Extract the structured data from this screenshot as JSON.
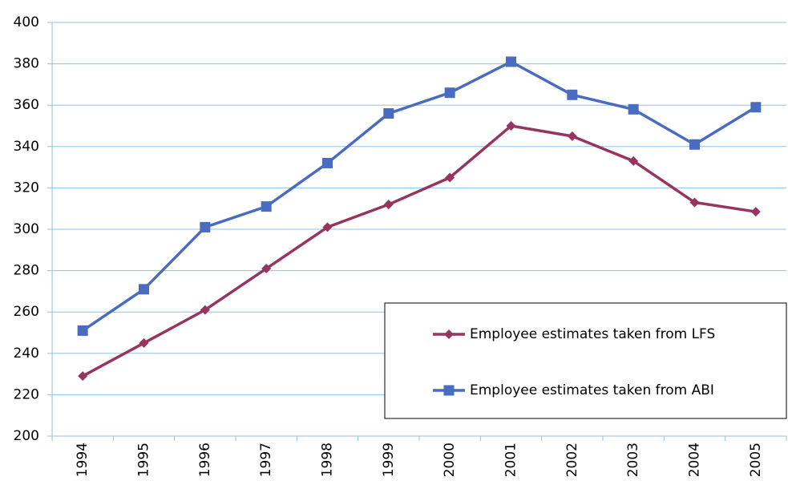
{
  "chart_data": {
    "type": "line",
    "categories": [
      "1994",
      "1995",
      "1996",
      "1997",
      "1998",
      "1999",
      "2000",
      "2001",
      "2002",
      "2003",
      "2004",
      "2005"
    ],
    "series": [
      {
        "name": "Employee estimates taken from LFS",
        "color": "#953560",
        "marker": "diamond",
        "values": [
          229,
          245,
          261,
          281,
          301,
          312,
          325,
          350,
          345,
          333,
          313,
          308.5
        ]
      },
      {
        "name": "Employee estimates taken from ABI",
        "color": "#4a6cc0",
        "marker": "square",
        "values": [
          251,
          271,
          301,
          311,
          332,
          356,
          366,
          381,
          365,
          358,
          341,
          359
        ]
      }
    ],
    "ylim": [
      200,
      400
    ],
    "yticks": [
      200,
      220,
      240,
      260,
      280,
      300,
      320,
      340,
      360,
      380,
      400
    ],
    "grid": true,
    "legend": "lower-right"
  }
}
